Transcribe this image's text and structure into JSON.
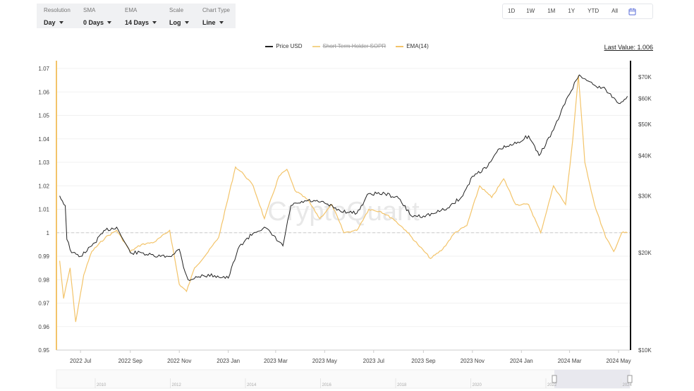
{
  "controls": [
    {
      "label": "Resolution",
      "value": "Day"
    },
    {
      "label": "SMA",
      "value": "0 Days"
    },
    {
      "label": "EMA",
      "value": "14 Days"
    },
    {
      "label": "Scale",
      "value": "Log"
    },
    {
      "label": "Chart Type",
      "value": "Line"
    }
  ],
  "ranges": [
    "1D",
    "1W",
    "1M",
    "1Y",
    "YTD",
    "All"
  ],
  "calendar_icon": "calendar-icon",
  "last_value": {
    "label": "Last Value:",
    "value": "1.006"
  },
  "watermark": "CryptoQuant",
  "colors": {
    "price": "#222222",
    "sopr": "#f3d48a",
    "ema": "#f3c46a",
    "left_axis": "#f3c46a",
    "right_axis": "#111111",
    "ref_line": "#cccccc"
  },
  "chart_data": {
    "type": "line",
    "legend": [
      "Price USD",
      "Short Term Holder SOPR",
      "EMA(14)"
    ],
    "legend_placement": "top-center",
    "x_ticks": [
      "2022 Jul",
      "2022 Sep",
      "2022 Nov",
      "2023 Jan",
      "2023 Mar",
      "2023 May",
      "2023 Jul",
      "2023 Sep",
      "2023 Nov",
      "2024 Jan",
      "2024 Mar",
      "2024 May"
    ],
    "y_left": {
      "ticks": [
        "1.07",
        "1.06",
        "1.05",
        "1.04",
        "1.03",
        "1.02",
        "1.01",
        "1",
        "0.99",
        "0.98",
        "0.97",
        "0.96",
        "0.95"
      ],
      "range": [
        0.95,
        1.07
      ]
    },
    "y_right": {
      "scale": "log",
      "ticks": [
        "$70K",
        "$60K",
        "$50K",
        "$40K",
        "$30K",
        "$20K",
        "$10K"
      ],
      "range": [
        10000,
        70000
      ]
    },
    "reference_line": 1,
    "navigator_ticks": [
      "2010",
      "2012",
      "2014",
      "2016",
      "2018",
      "2020",
      "2022",
      "2024"
    ],
    "series": [
      {
        "name": "Price USD",
        "axis": "right",
        "x": [
          "2022-06-05",
          "2022-06-12",
          "2022-06-14",
          "2022-06-20",
          "2022-07-01",
          "2022-07-15",
          "2022-08-01",
          "2022-08-15",
          "2022-09-01",
          "2022-09-15",
          "2022-10-01",
          "2022-10-20",
          "2022-11-01",
          "2022-11-08",
          "2022-11-12",
          "2022-12-01",
          "2022-12-15",
          "2023-01-01",
          "2023-01-15",
          "2023-02-01",
          "2023-02-15",
          "2023-03-10",
          "2023-03-20",
          "2023-04-10",
          "2023-05-01",
          "2023-05-20",
          "2023-06-10",
          "2023-06-25",
          "2023-07-15",
          "2023-08-01",
          "2023-08-17",
          "2023-09-01",
          "2023-09-15",
          "2023-10-01",
          "2023-10-20",
          "2023-11-01",
          "2023-11-20",
          "2023-12-05",
          "2023-12-20",
          "2024-01-10",
          "2024-01-23",
          "2024-02-10",
          "2024-02-28",
          "2024-03-13",
          "2024-04-01",
          "2024-04-15",
          "2024-05-01",
          "2024-05-12"
        ],
        "values": [
          30000,
          28000,
          22000,
          20000,
          19500,
          21000,
          23500,
          24000,
          20000,
          20000,
          19500,
          19500,
          20500,
          17500,
          16500,
          17000,
          17000,
          16700,
          21000,
          23000,
          24000,
          21000,
          28000,
          29000,
          28500,
          27000,
          26500,
          30500,
          30500,
          29500,
          26000,
          26000,
          26500,
          27500,
          30000,
          34500,
          37000,
          42000,
          43000,
          46000,
          40000,
          48000,
          61000,
          71000,
          66000,
          64000,
          58000,
          61000
        ]
      },
      {
        "name": "EMA(14)",
        "axis": "left",
        "x": [
          "2022-06-05",
          "2022-06-10",
          "2022-06-18",
          "2022-06-25",
          "2022-07-05",
          "2022-07-15",
          "2022-08-01",
          "2022-08-15",
          "2022-09-01",
          "2022-09-15",
          "2022-10-01",
          "2022-10-20",
          "2022-11-01",
          "2022-11-10",
          "2022-11-20",
          "2022-12-05",
          "2022-12-20",
          "2023-01-10",
          "2023-01-20",
          "2023-02-01",
          "2023-02-15",
          "2023-03-05",
          "2023-03-15",
          "2023-03-25",
          "2023-04-10",
          "2023-04-25",
          "2023-05-10",
          "2023-05-25",
          "2023-06-10",
          "2023-06-25",
          "2023-07-10",
          "2023-07-25",
          "2023-08-10",
          "2023-08-25",
          "2023-09-10",
          "2023-09-25",
          "2023-10-10",
          "2023-10-25",
          "2023-11-10",
          "2023-11-25",
          "2023-12-10",
          "2023-12-25",
          "2024-01-10",
          "2024-01-25",
          "2024-02-10",
          "2024-02-25",
          "2024-03-05",
          "2024-03-12",
          "2024-03-20",
          "2024-04-01",
          "2024-04-15",
          "2024-04-25",
          "2024-05-05",
          "2024-05-12"
        ],
        "values": [
          0.988,
          0.972,
          0.985,
          0.962,
          0.982,
          0.992,
          0.998,
          1.001,
          0.992,
          0.995,
          0.996,
          1.001,
          0.978,
          0.975,
          0.985,
          0.991,
          0.998,
          1.028,
          1.025,
          1.02,
          1.006,
          1.024,
          1.027,
          1.018,
          1.014,
          1.006,
          1.012,
          1.0,
          1.001,
          1.01,
          1.009,
          1.006,
          1.001,
          0.995,
          0.989,
          0.993,
          1.0,
          1.003,
          1.02,
          1.015,
          1.023,
          1.012,
          1.012,
          1.0,
          1.02,
          1.012,
          1.04,
          1.067,
          1.03,
          1.012,
          0.998,
          0.992,
          1.0,
          1.0
        ]
      }
    ]
  }
}
